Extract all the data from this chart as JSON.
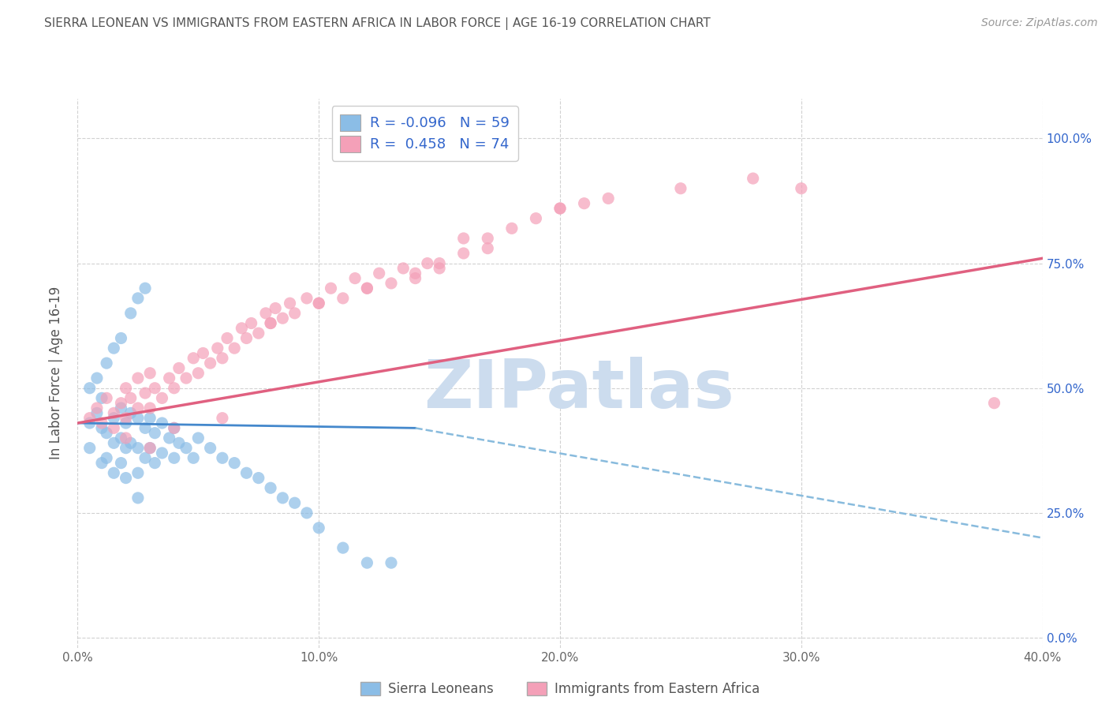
{
  "title": "SIERRA LEONEAN VS IMMIGRANTS FROM EASTERN AFRICA IN LABOR FORCE | AGE 16-19 CORRELATION CHART",
  "source": "Source: ZipAtlas.com",
  "ylabel": "In Labor Force | Age 16-19",
  "xlim": [
    0.0,
    0.4
  ],
  "ylim": [
    -0.02,
    1.08
  ],
  "xticks": [
    0.0,
    0.1,
    0.2,
    0.3,
    0.4
  ],
  "xtick_labels": [
    "0.0%",
    "10.0%",
    "20.0%",
    "30.0%",
    "40.0%"
  ],
  "yticks": [
    0.0,
    0.25,
    0.5,
    0.75,
    1.0
  ],
  "ytick_labels": [
    "0.0%",
    "25.0%",
    "50.0%",
    "75.0%",
    "100.0%"
  ],
  "series1_color": "#8bbde6",
  "series2_color": "#f4a0b8",
  "series1_label": "Sierra Leoneans",
  "series2_label": "Immigrants from Eastern Africa",
  "series1_R": "-0.096",
  "series1_N": "59",
  "series2_R": "0.458",
  "series2_N": "74",
  "watermark": "ZIPatlas",
  "watermark_color": "#ccdcee",
  "background_color": "#ffffff",
  "grid_color": "#cccccc",
  "title_color": "#555555",
  "legend_text_color": "#3366cc",
  "axis_color": "#3366cc",
  "series1_x": [
    0.005,
    0.005,
    0.008,
    0.01,
    0.01,
    0.01,
    0.012,
    0.012,
    0.015,
    0.015,
    0.015,
    0.018,
    0.018,
    0.018,
    0.02,
    0.02,
    0.02,
    0.022,
    0.022,
    0.025,
    0.025,
    0.025,
    0.025,
    0.028,
    0.028,
    0.03,
    0.03,
    0.032,
    0.032,
    0.035,
    0.035,
    0.038,
    0.04,
    0.04,
    0.042,
    0.045,
    0.048,
    0.05,
    0.055,
    0.06,
    0.065,
    0.07,
    0.075,
    0.08,
    0.085,
    0.09,
    0.095,
    0.1,
    0.11,
    0.12,
    0.13,
    0.005,
    0.008,
    0.012,
    0.015,
    0.018,
    0.022,
    0.025,
    0.028
  ],
  "series1_y": [
    0.43,
    0.38,
    0.45,
    0.42,
    0.35,
    0.48,
    0.41,
    0.36,
    0.44,
    0.39,
    0.33,
    0.46,
    0.4,
    0.35,
    0.43,
    0.38,
    0.32,
    0.45,
    0.39,
    0.44,
    0.38,
    0.33,
    0.28,
    0.42,
    0.36,
    0.44,
    0.38,
    0.41,
    0.35,
    0.43,
    0.37,
    0.4,
    0.42,
    0.36,
    0.39,
    0.38,
    0.36,
    0.4,
    0.38,
    0.36,
    0.35,
    0.33,
    0.32,
    0.3,
    0.28,
    0.27,
    0.25,
    0.22,
    0.18,
    0.15,
    0.15,
    0.5,
    0.52,
    0.55,
    0.58,
    0.6,
    0.65,
    0.68,
    0.7
  ],
  "series2_x": [
    0.005,
    0.008,
    0.01,
    0.012,
    0.015,
    0.015,
    0.018,
    0.02,
    0.02,
    0.022,
    0.025,
    0.025,
    0.028,
    0.03,
    0.03,
    0.032,
    0.035,
    0.038,
    0.04,
    0.042,
    0.045,
    0.048,
    0.05,
    0.052,
    0.055,
    0.058,
    0.06,
    0.062,
    0.065,
    0.068,
    0.07,
    0.072,
    0.075,
    0.078,
    0.08,
    0.082,
    0.085,
    0.088,
    0.09,
    0.095,
    0.1,
    0.105,
    0.11,
    0.115,
    0.12,
    0.125,
    0.13,
    0.135,
    0.14,
    0.145,
    0.15,
    0.16,
    0.17,
    0.18,
    0.19,
    0.2,
    0.21,
    0.22,
    0.25,
    0.28,
    0.3,
    0.38,
    0.08,
    0.1,
    0.12,
    0.14,
    0.2,
    0.02,
    0.03,
    0.04,
    0.06,
    0.15,
    0.17,
    0.16
  ],
  "series2_y": [
    0.44,
    0.46,
    0.43,
    0.48,
    0.45,
    0.42,
    0.47,
    0.5,
    0.44,
    0.48,
    0.46,
    0.52,
    0.49,
    0.46,
    0.53,
    0.5,
    0.48,
    0.52,
    0.5,
    0.54,
    0.52,
    0.56,
    0.53,
    0.57,
    0.55,
    0.58,
    0.56,
    0.6,
    0.58,
    0.62,
    0.6,
    0.63,
    0.61,
    0.65,
    0.63,
    0.66,
    0.64,
    0.67,
    0.65,
    0.68,
    0.67,
    0.7,
    0.68,
    0.72,
    0.7,
    0.73,
    0.71,
    0.74,
    0.72,
    0.75,
    0.74,
    0.77,
    0.8,
    0.82,
    0.84,
    0.86,
    0.87,
    0.88,
    0.9,
    0.92,
    0.9,
    0.47,
    0.63,
    0.67,
    0.7,
    0.73,
    0.86,
    0.4,
    0.38,
    0.42,
    0.44,
    0.75,
    0.78,
    0.8
  ],
  "trend1_x0": 0.0,
  "trend1_x1": 0.14,
  "trend1_y0": 0.43,
  "trend1_y1": 0.42,
  "trend1_dash_x0": 0.14,
  "trend1_dash_x1": 0.4,
  "trend1_dash_y0": 0.42,
  "trend1_dash_y1": 0.2,
  "trend2_x0": 0.0,
  "trend2_x1": 0.4,
  "trend2_y0": 0.43,
  "trend2_y1": 0.76
}
